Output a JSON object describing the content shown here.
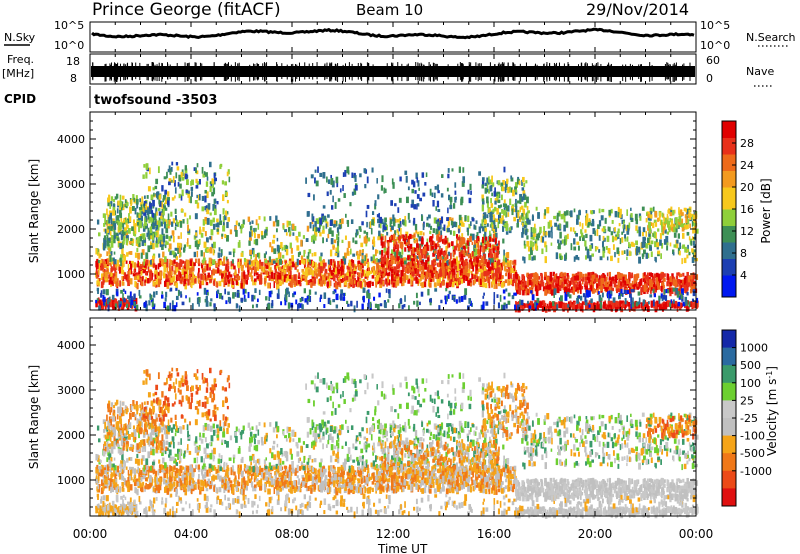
{
  "header": {
    "station": "Prince George (fitACF)",
    "beam": "Beam 10",
    "date": "29/Nov/2014"
  },
  "strip_panels": {
    "nsky_label": "N.Sky",
    "nsearch_label": "N.Search",
    "nsky_ticks": [
      "10^5",
      "10^0"
    ],
    "nsearch_ticks": [
      "10^5",
      "10^0"
    ],
    "freq_label_1": "Freq.",
    "freq_label_2": "[MHz]",
    "freq_ticks": [
      "18",
      "8"
    ],
    "nave_label": "Nave",
    "nave_ticks": [
      "60",
      "0"
    ],
    "cpid_label": "CPID",
    "cpid_value": "twofsound -3503"
  },
  "colors": {
    "power": [
      "#0018f0",
      "#1c3fb2",
      "#2f6f8e",
      "#3d8f55",
      "#8fcf3a",
      "#f7c81c",
      "#f39a1f",
      "#ee6a1a",
      "#e8301a",
      "#e00000"
    ],
    "velocity": [
      "#1428a8",
      "#2a6aa0",
      "#3a9a6a",
      "#6ccf30",
      "#c8c8c8",
      "#c0c0c0",
      "#f5a418",
      "#f07818",
      "#ec4a18",
      "#e01010"
    ]
  },
  "chart_data": [
    {
      "type": "heatmap",
      "name": "power",
      "ylabel": "Slant Range [km]",
      "ylim": [
        200,
        4600
      ],
      "yticks": [
        "1000",
        "2000",
        "3000",
        "4000"
      ],
      "colorbar_label": "Power [dB]",
      "colorbar_ticks": [
        "4",
        "8",
        "12",
        "16",
        "20",
        "24",
        "28"
      ],
      "colorbar_range": [
        0,
        32
      ]
    },
    {
      "type": "heatmap",
      "name": "velocity",
      "ylabel": "Slant Range [km]",
      "ylim": [
        200,
        4600
      ],
      "yticks": [
        "1000",
        "2000",
        "3000",
        "4000"
      ],
      "colorbar_label": "Velocity [m s^-1]",
      "colorbar_ticks": [
        "1000",
        "500",
        "100",
        "25",
        "-25",
        "-100",
        "-500",
        "-1000"
      ]
    }
  ],
  "x_axis": {
    "label": "Time UT",
    "range_hours": [
      0,
      24
    ],
    "ticks": [
      "00:00",
      "04:00",
      "08:00",
      "12:00",
      "16:00",
      "20:00",
      "00:00"
    ]
  }
}
